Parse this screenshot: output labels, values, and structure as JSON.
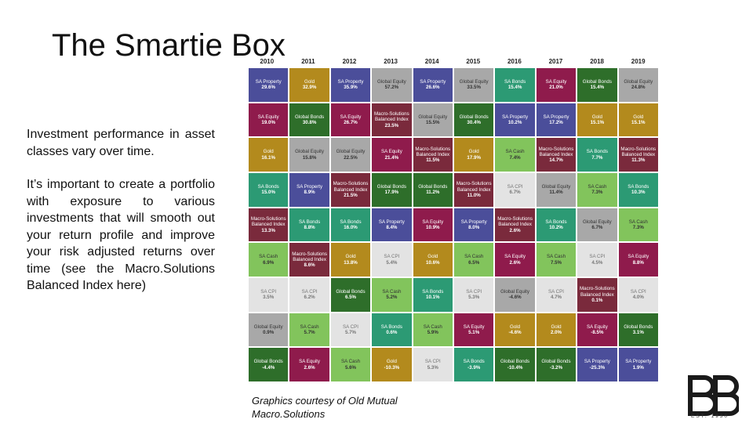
{
  "title": "The Smartie Box",
  "paragraphs": [
    "Investment performance in asset classes vary over time.",
    "It’s important to create a portfolio with exposure to various investments that will smooth out your return profile and improve your risk adjusted returns over time (see the Macro.Solutions Balanced Index here)"
  ],
  "credit": [
    "Graphics courtesy of Old Mutual",
    "Macro.Solutions"
  ],
  "logo": {
    "est": "EST. 1930"
  },
  "colors": {
    "sa_property": "#4b4e9a",
    "gold": "#b38a1d",
    "sa_equity": "#8f1b4c",
    "global_equity": "#a8a8a8",
    "sa_bonds": "#2c9a74",
    "global_bonds": "#2e6e2a",
    "macro": "#7a2a3c",
    "sa_cash": "#82c45c",
    "sa_cpi": "#e3e3e3"
  },
  "chart_data": {
    "type": "table",
    "years": [
      "2010",
      "2011",
      "2012",
      "2013",
      "2014",
      "2015",
      "2016",
      "2017",
      "2018",
      "2019"
    ],
    "columns": [
      [
        {
          "name": "SA Property",
          "value": "29.6%",
          "cls": "sa_property"
        },
        {
          "name": "SA Equity",
          "value": "19.0%",
          "cls": "sa_equity"
        },
        {
          "name": "Gold",
          "value": "16.1%",
          "cls": "gold"
        },
        {
          "name": "SA Bonds",
          "value": "15.0%",
          "cls": "sa_bonds"
        },
        {
          "name": "Macro-Solutions Balanced Index",
          "value": "13.3%",
          "cls": "macro"
        },
        {
          "name": "SA Cash",
          "value": "6.9%",
          "cls": "sa_cash"
        },
        {
          "name": "SA CPI",
          "value": "3.5%",
          "cls": "sa_cpi"
        },
        {
          "name": "Global Equity",
          "value": "0.9%",
          "cls": "global_equity"
        },
        {
          "name": "Global Bonds",
          "value": "-4.4%",
          "cls": "global_bonds"
        }
      ],
      [
        {
          "name": "Gold",
          "value": "32.9%",
          "cls": "gold"
        },
        {
          "name": "Global Bonds",
          "value": "30.8%",
          "cls": "global_bonds"
        },
        {
          "name": "Global Equity",
          "value": "15.8%",
          "cls": "global_equity"
        },
        {
          "name": "SA Property",
          "value": "8.9%",
          "cls": "sa_property"
        },
        {
          "name": "SA Bonds",
          "value": "8.8%",
          "cls": "sa_bonds"
        },
        {
          "name": "Macro-Solutions Balanced Index",
          "value": "8.6%",
          "cls": "macro"
        },
        {
          "name": "SA CPI",
          "value": "6.2%",
          "cls": "sa_cpi"
        },
        {
          "name": "SA Cash",
          "value": "5.7%",
          "cls": "sa_cash"
        },
        {
          "name": "SA Equity",
          "value": "2.6%",
          "cls": "sa_equity"
        }
      ],
      [
        {
          "name": "SA Property",
          "value": "35.9%",
          "cls": "sa_property"
        },
        {
          "name": "SA Equity",
          "value": "26.7%",
          "cls": "sa_equity"
        },
        {
          "name": "Global Equity",
          "value": "22.5%",
          "cls": "global_equity"
        },
        {
          "name": "Macro-Solutions Balanced Index",
          "value": "21.5%",
          "cls": "macro"
        },
        {
          "name": "SA Bonds",
          "value": "16.0%",
          "cls": "sa_bonds"
        },
        {
          "name": "Gold",
          "value": "13.8%",
          "cls": "gold"
        },
        {
          "name": "Global Bonds",
          "value": "6.5%",
          "cls": "global_bonds"
        },
        {
          "name": "SA CPI",
          "value": "5.7%",
          "cls": "sa_cpi"
        },
        {
          "name": "SA Cash",
          "value": "5.6%",
          "cls": "sa_cash"
        }
      ],
      [
        {
          "name": "Global Equity",
          "value": "57.2%",
          "cls": "global_equity"
        },
        {
          "name": "Macro-Solutions Balanced Index",
          "value": "23.5%",
          "cls": "macro"
        },
        {
          "name": "SA Equity",
          "value": "21.4%",
          "cls": "sa_equity"
        },
        {
          "name": "Global Bonds",
          "value": "17.9%",
          "cls": "global_bonds"
        },
        {
          "name": "SA Property",
          "value": "8.4%",
          "cls": "sa_property"
        },
        {
          "name": "SA CPI",
          "value": "5.4%",
          "cls": "sa_cpi"
        },
        {
          "name": "SA Cash",
          "value": "5.2%",
          "cls": "sa_cash"
        },
        {
          "name": "SA Bonds",
          "value": "0.6%",
          "cls": "sa_bonds"
        },
        {
          "name": "Gold",
          "value": "-10.3%",
          "cls": "gold"
        }
      ],
      [
        {
          "name": "SA Property",
          "value": "26.6%",
          "cls": "sa_property"
        },
        {
          "name": "Global Equity",
          "value": "15.5%",
          "cls": "global_equity"
        },
        {
          "name": "Macro-Solutions Balanced Index",
          "value": "11.5%",
          "cls": "macro"
        },
        {
          "name": "Global Bonds",
          "value": "11.2%",
          "cls": "global_bonds"
        },
        {
          "name": "SA Equity",
          "value": "10.9%",
          "cls": "sa_equity"
        },
        {
          "name": "Gold",
          "value": "10.6%",
          "cls": "gold"
        },
        {
          "name": "SA Bonds",
          "value": "10.1%",
          "cls": "sa_bonds"
        },
        {
          "name": "SA Cash",
          "value": "5.9%",
          "cls": "sa_cash"
        },
        {
          "name": "SA CPI",
          "value": "5.3%",
          "cls": "sa_cpi"
        }
      ],
      [
        {
          "name": "Global Equity",
          "value": "33.5%",
          "cls": "global_equity"
        },
        {
          "name": "Global Bonds",
          "value": "30.4%",
          "cls": "global_bonds"
        },
        {
          "name": "Gold",
          "value": "17.9%",
          "cls": "gold"
        },
        {
          "name": "Macro-Solutions Balanced Index",
          "value": "11.0%",
          "cls": "macro"
        },
        {
          "name": "SA Property",
          "value": "8.0%",
          "cls": "sa_property"
        },
        {
          "name": "SA Cash",
          "value": "6.5%",
          "cls": "sa_cash"
        },
        {
          "name": "SA CPI",
          "value": "5.3%",
          "cls": "sa_cpi"
        },
        {
          "name": "SA Equity",
          "value": "5.1%",
          "cls": "sa_equity"
        },
        {
          "name": "SA Bonds",
          "value": "-3.9%",
          "cls": "sa_bonds"
        }
      ],
      [
        {
          "name": "SA Bonds",
          "value": "15.4%",
          "cls": "sa_bonds"
        },
        {
          "name": "SA Property",
          "value": "10.2%",
          "cls": "sa_property"
        },
        {
          "name": "SA Cash",
          "value": "7.4%",
          "cls": "sa_cash"
        },
        {
          "name": "SA CPI",
          "value": "6.7%",
          "cls": "sa_cpi"
        },
        {
          "name": "Macro-Solutions Balanced Index",
          "value": "2.6%",
          "cls": "macro"
        },
        {
          "name": "SA Equity",
          "value": "2.6%",
          "cls": "sa_equity"
        },
        {
          "name": "Global Equity",
          "value": "-4.6%",
          "cls": "global_equity"
        },
        {
          "name": "Gold",
          "value": "-4.6%",
          "cls": "gold"
        },
        {
          "name": "Global Bonds",
          "value": "-10.4%",
          "cls": "global_bonds"
        }
      ],
      [
        {
          "name": "SA Equity",
          "value": "21.0%",
          "cls": "sa_equity"
        },
        {
          "name": "SA Property",
          "value": "17.2%",
          "cls": "sa_property"
        },
        {
          "name": "Macro-Solutions Balanced Index",
          "value": "14.7%",
          "cls": "macro"
        },
        {
          "name": "Global Equity",
          "value": "11.4%",
          "cls": "global_equity"
        },
        {
          "name": "SA Bonds",
          "value": "10.2%",
          "cls": "sa_bonds"
        },
        {
          "name": "SA Cash",
          "value": "7.5%",
          "cls": "sa_cash"
        },
        {
          "name": "SA CPI",
          "value": "4.7%",
          "cls": "sa_cpi"
        },
        {
          "name": "Gold",
          "value": "2.0%",
          "cls": "gold"
        },
        {
          "name": "Global Bonds",
          "value": "-3.2%",
          "cls": "global_bonds"
        }
      ],
      [
        {
          "name": "Global Bonds",
          "value": "15.4%",
          "cls": "global_bonds"
        },
        {
          "name": "Gold",
          "value": "15.1%",
          "cls": "gold"
        },
        {
          "name": "SA Bonds",
          "value": "7.7%",
          "cls": "sa_bonds"
        },
        {
          "name": "SA Cash",
          "value": "7.3%",
          "cls": "sa_cash"
        },
        {
          "name": "Global Equity",
          "value": "6.7%",
          "cls": "global_equity"
        },
        {
          "name": "SA CPI",
          "value": "4.5%",
          "cls": "sa_cpi"
        },
        {
          "name": "Macro-Solutions Balanced Index",
          "value": "0.1%",
          "cls": "macro"
        },
        {
          "name": "SA Equity",
          "value": "-8.5%",
          "cls": "sa_equity"
        },
        {
          "name": "SA Property",
          "value": "-25.3%",
          "cls": "sa_property"
        }
      ],
      [
        {
          "name": "Global Equity",
          "value": "24.8%",
          "cls": "global_equity"
        },
        {
          "name": "Gold",
          "value": "15.1%",
          "cls": "gold"
        },
        {
          "name": "Macro-Solutions Balanced Index",
          "value": "11.3%",
          "cls": "macro"
        },
        {
          "name": "SA Bonds",
          "value": "10.3%",
          "cls": "sa_bonds"
        },
        {
          "name": "SA Cash",
          "value": "7.3%",
          "cls": "sa_cash"
        },
        {
          "name": "SA Equity",
          "value": "8.8%",
          "cls": "sa_equity"
        },
        {
          "name": "SA CPI",
          "value": "4.0%",
          "cls": "sa_cpi"
        },
        {
          "name": "Global Bonds",
          "value": "3.1%",
          "cls": "global_bonds"
        },
        {
          "name": "SA Property",
          "value": "1.9%",
          "cls": "sa_property"
        }
      ]
    ]
  }
}
